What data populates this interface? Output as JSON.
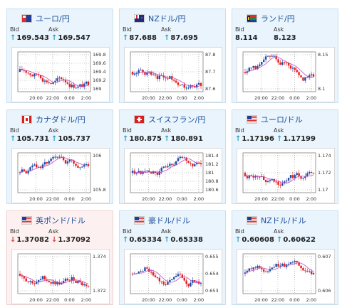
{
  "cards": [
    {
      "id": "eur-jpy",
      "flag": "eu",
      "title": "ユーロ/円",
      "bid_label": "Bid",
      "ask_label": "Ask",
      "bid": "169.543",
      "ask": "169.547",
      "dir": "up",
      "bg": "blue",
      "chart": {
        "y_ticks": [
          "169.8",
          "169.6",
          "169.4",
          "169.2",
          "169"
        ],
        "x_ticks": [
          "20:00",
          "22:00",
          "0:00",
          "2:00"
        ]
      }
    },
    {
      "id": "nzd-jpy",
      "flag": "nz",
      "title": "NZドル/円",
      "bid_label": "Bid",
      "ask_label": "Ask",
      "bid": "87.688",
      "ask": "87.695",
      "dir": "up",
      "bg": "blue",
      "chart": {
        "y_ticks": [
          "87.8",
          "87.7",
          "87.6"
        ],
        "x_ticks": [
          "20:00",
          "22:00",
          "0:00",
          "2:00"
        ]
      }
    },
    {
      "id": "zar-jpy",
      "flag": "za",
      "title": "ランド/円",
      "bid_label": "Bid",
      "ask_label": "Ask",
      "bid": "8.114",
      "ask": "8.123",
      "dir": "none",
      "bg": "blue",
      "chart": {
        "y_ticks": [
          "8.15",
          "8.1"
        ],
        "x_ticks": [
          "20:00",
          "22:00",
          "0:00",
          "2:00"
        ]
      }
    },
    {
      "id": "cad-jpy",
      "flag": "ca",
      "title": "カナダドル/円",
      "bid_label": "Bid",
      "ask_label": "Ask",
      "bid": "105.731",
      "ask": "105.737",
      "dir": "up",
      "bg": "blue",
      "chart": {
        "y_ticks": [
          "106",
          "105.8"
        ],
        "x_ticks": [
          "20:00",
          "22:00",
          "0:00",
          "2:00"
        ]
      }
    },
    {
      "id": "chf-jpy",
      "flag": "ch",
      "title": "スイスフラン/円",
      "bid_label": "Bid",
      "ask_label": "Ask",
      "bid": "180.875",
      "ask": "180.891",
      "dir": "up",
      "bg": "blue",
      "chart": {
        "y_ticks": [
          "181.4",
          "181.2",
          "181",
          "180.8",
          "180.6"
        ],
        "x_ticks": [
          "20:00",
          "22:00",
          "0:00",
          "2:00"
        ]
      }
    },
    {
      "id": "eur-usd",
      "flag": "us",
      "title": "ユーロ/ドル",
      "bid_label": "Bid",
      "ask_label": "Ask",
      "bid": "1.17196",
      "ask": "1.17199",
      "dir": "up",
      "bg": "blue",
      "chart": {
        "y_ticks": [
          "1.174",
          "1.172",
          "1.17"
        ],
        "x_ticks": [
          "20:00",
          "22:00",
          "0:00",
          "2:00"
        ]
      }
    },
    {
      "id": "gbp-usd",
      "flag": "us",
      "title": "英ポンド/ドル",
      "bid_label": "Bid",
      "ask_label": "Ask",
      "bid": "1.37082",
      "ask": "1.37092",
      "dir": "down",
      "bg": "pink",
      "chart": {
        "y_ticks": [
          "1.374",
          "1.372"
        ],
        "x_ticks": [
          "20:00",
          "22:00",
          "0:00",
          "2:00"
        ]
      }
    },
    {
      "id": "aud-usd",
      "flag": "us",
      "title": "豪ドル/ドル",
      "bid_label": "Bid",
      "ask_label": "Ask",
      "bid": "0.65334",
      "ask": "0.65338",
      "dir": "up",
      "bg": "blue",
      "chart": {
        "y_ticks": [
          "0.655",
          "0.654",
          "0.653"
        ],
        "x_ticks": [
          "20:00",
          "22:00",
          "0:00",
          "2:00"
        ]
      }
    },
    {
      "id": "nzd-usd",
      "flag": "us",
      "title": "NZドル/ドル",
      "bid_label": "Bid",
      "ask_label": "Ask",
      "bid": "0.60608",
      "ask": "0.60622",
      "dir": "up",
      "bg": "blue",
      "chart": {
        "y_ticks": [
          "0.607",
          "0.606"
        ],
        "x_ticks": [
          "20:00",
          "22:00",
          "0:00",
          "2:00"
        ]
      }
    }
  ],
  "colors": {
    "up_arrow": "#2e9ec9",
    "down_arrow": "#e23b3b",
    "candle_up": "#1f4ba8",
    "candle_down": "#e02020",
    "ma_line": "#c24bc2"
  }
}
